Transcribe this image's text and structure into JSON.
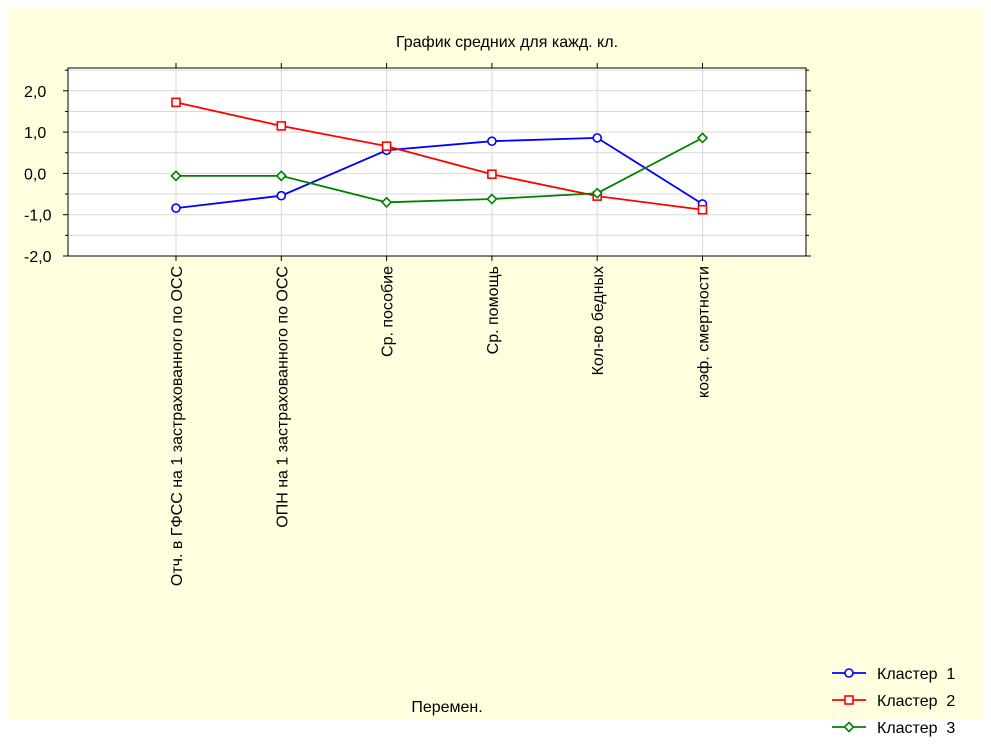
{
  "colors": {
    "background": "#ffffe0",
    "plot_background": "#ffffff",
    "grid": "#d9d9d9",
    "axis": "#000000"
  },
  "chart_data": {
    "type": "line",
    "title": "График средних для кажд. кл.",
    "xlabel": "Перемен.",
    "ylabel": "",
    "categories": [
      "Отч. в ГФСС на 1 застрахованного по ОСС",
      "ОПН на 1 застрахованного по ОСС",
      "Ср. пособие",
      "Ср. помощь",
      "Кол-во бедных",
      "коэф. смертности"
    ],
    "ylim": [
      -2.0,
      2.5
    ],
    "yticks": [
      -2.0,
      -1.0,
      0.0,
      1.0,
      2.0
    ],
    "ytick_labels": [
      "-2,0",
      "-1,0",
      "0,0",
      "1,0",
      "2,0"
    ],
    "grid": true,
    "legend_position": "bottom-right",
    "series": [
      {
        "name": "Кластер  1",
        "color": "#0000ff",
        "marker": "circle",
        "values": [
          -0.84,
          -0.54,
          0.56,
          0.78,
          0.86,
          -0.74
        ]
      },
      {
        "name": "Кластер  2",
        "color": "#ff0000",
        "marker": "square",
        "values": [
          1.72,
          1.15,
          0.66,
          -0.02,
          -0.55,
          -0.88
        ]
      },
      {
        "name": "Кластер  3",
        "color": "#008000",
        "marker": "diamond",
        "values": [
          -0.06,
          -0.06,
          -0.7,
          -0.62,
          -0.48,
          0.86
        ]
      }
    ]
  }
}
